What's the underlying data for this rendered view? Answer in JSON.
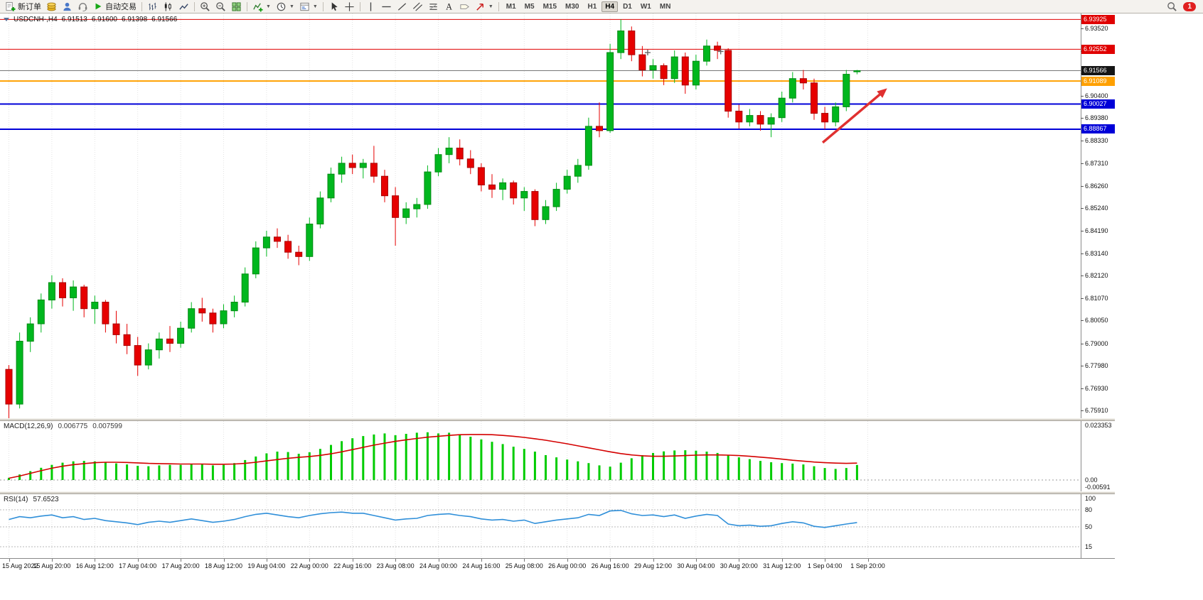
{
  "toolbar": {
    "new_order_label": "新订单",
    "autotrading_label": "自动交易",
    "timeframes": [
      "M1",
      "M5",
      "M15",
      "M30",
      "H1",
      "H4",
      "D1",
      "W1",
      "MN"
    ],
    "active_timeframe": "H4",
    "notification_count": "1"
  },
  "chart": {
    "symbol_period": "USDCNH-,H4",
    "open": "6.91513",
    "high": "6.91600",
    "low": "6.91398",
    "close": "6.91566"
  },
  "chart_data": {
    "type": "candlestick",
    "symbol": "USDCNH-",
    "timeframe": "H4",
    "price_axis": {
      "min": 6.7555,
      "max": 6.942
    },
    "price_ticks": [
      "6.93520",
      "6.92480",
      "6.91440",
      "6.90400",
      "6.89380",
      "6.88330",
      "6.87310",
      "6.86260",
      "6.85240",
      "6.84190",
      "6.83140",
      "6.82120",
      "6.81070",
      "6.80050",
      "6.79000",
      "6.77980",
      "6.76930",
      "6.75910"
    ],
    "x_labels": [
      {
        "i": 0,
        "label": "15 Aug 2022"
      },
      {
        "i": 4,
        "label": "15 Aug 20:00"
      },
      {
        "i": 8,
        "label": "16 Aug 12:00"
      },
      {
        "i": 12,
        "label": "17 Aug 04:00"
      },
      {
        "i": 16,
        "label": "17 Aug 20:00"
      },
      {
        "i": 20,
        "label": "18 Aug 12:00"
      },
      {
        "i": 24,
        "label": "19 Aug 04:00"
      },
      {
        "i": 28,
        "label": "22 Aug 00:00"
      },
      {
        "i": 32,
        "label": "22 Aug 16:00"
      },
      {
        "i": 36,
        "label": "23 Aug 08:00"
      },
      {
        "i": 40,
        "label": "24 Aug 00:00"
      },
      {
        "i": 44,
        "label": "24 Aug 16:00"
      },
      {
        "i": 48,
        "label": "25 Aug 08:00"
      },
      {
        "i": 52,
        "label": "26 Aug 00:00"
      },
      {
        "i": 56,
        "label": "26 Aug 16:00"
      },
      {
        "i": 60,
        "label": "29 Aug 12:00"
      },
      {
        "i": 64,
        "label": "30 Aug 04:00"
      },
      {
        "i": 68,
        "label": "30 Aug 20:00"
      },
      {
        "i": 72,
        "label": "31 Aug 12:00"
      },
      {
        "i": 76,
        "label": "1 Sep 04:00"
      },
      {
        "i": 80,
        "label": "1 Sep 20:00"
      }
    ],
    "candles_ohlc": [
      [
        6.778,
        6.78,
        6.7555,
        6.762
      ],
      [
        6.762,
        6.795,
        6.76,
        6.791
      ],
      [
        6.791,
        6.802,
        6.786,
        6.799
      ],
      [
        6.799,
        6.813,
        6.795,
        6.81
      ],
      [
        6.81,
        6.8214,
        6.806,
        6.818
      ],
      [
        6.818,
        6.82,
        6.807,
        6.811
      ],
      [
        6.811,
        6.819,
        6.805,
        6.816
      ],
      [
        6.816,
        6.817,
        6.802,
        6.806
      ],
      [
        6.806,
        6.812,
        6.799,
        6.809
      ],
      [
        6.809,
        6.81,
        6.795,
        6.799
      ],
      [
        6.799,
        6.805,
        6.79,
        6.794
      ],
      [
        6.794,
        6.799,
        6.785,
        6.789
      ],
      [
        6.789,
        6.793,
        6.775,
        6.78
      ],
      [
        6.78,
        6.79,
        6.778,
        6.787
      ],
      [
        6.787,
        6.795,
        6.783,
        6.792
      ],
      [
        6.792,
        6.798,
        6.786,
        6.79
      ],
      [
        6.79,
        6.8,
        6.788,
        6.797
      ],
      [
        6.797,
        6.809,
        6.795,
        6.806
      ],
      [
        6.806,
        6.811,
        6.8,
        6.804
      ],
      [
        6.804,
        6.806,
        6.795,
        6.799
      ],
      [
        6.799,
        6.808,
        6.797,
        6.805
      ],
      [
        6.805,
        6.812,
        6.802,
        6.809
      ],
      [
        6.809,
        6.825,
        6.807,
        6.822
      ],
      [
        6.822,
        6.837,
        6.82,
        6.834
      ],
      [
        6.834,
        6.8419,
        6.83,
        6.839
      ],
      [
        6.839,
        6.843,
        6.834,
        6.837
      ],
      [
        6.837,
        6.84,
        6.829,
        6.832
      ],
      [
        6.832,
        6.835,
        6.826,
        6.83
      ],
      [
        6.83,
        6.848,
        6.828,
        6.845
      ],
      [
        6.845,
        6.86,
        6.843,
        6.857
      ],
      [
        6.857,
        6.871,
        6.855,
        6.868
      ],
      [
        6.868,
        6.876,
        6.864,
        6.873
      ],
      [
        6.873,
        6.877,
        6.868,
        6.871
      ],
      [
        6.871,
        6.875,
        6.866,
        6.873
      ],
      [
        6.873,
        6.881,
        6.864,
        6.867
      ],
      [
        6.867,
        6.87,
        6.855,
        6.858
      ],
      [
        6.858,
        6.862,
        6.835,
        6.848
      ],
      [
        6.848,
        6.855,
        6.845,
        6.852
      ],
      [
        6.852,
        6.857,
        6.848,
        6.854
      ],
      [
        6.854,
        6.872,
        6.852,
        6.869
      ],
      [
        6.869,
        6.88,
        6.867,
        6.877
      ],
      [
        6.877,
        6.885,
        6.873,
        6.88
      ],
      [
        6.88,
        6.884,
        6.872,
        6.875
      ],
      [
        6.875,
        6.879,
        6.868,
        6.871
      ],
      [
        6.871,
        6.873,
        6.86,
        6.863
      ],
      [
        6.863,
        6.868,
        6.857,
        6.861
      ],
      [
        6.861,
        6.866,
        6.856,
        6.864
      ],
      [
        6.864,
        6.865,
        6.854,
        6.857
      ],
      [
        6.857,
        6.862,
        6.851,
        6.86
      ],
      [
        6.86,
        6.861,
        6.844,
        6.847
      ],
      [
        6.847,
        6.856,
        6.845,
        6.853
      ],
      [
        6.853,
        6.864,
        6.851,
        6.861
      ],
      [
        6.861,
        6.87,
        6.859,
        6.867
      ],
      [
        6.867,
        6.875,
        6.864,
        6.872
      ],
      [
        6.872,
        6.894,
        6.87,
        6.89
      ],
      [
        6.89,
        6.901,
        6.885,
        6.888
      ],
      [
        6.888,
        6.928,
        6.887,
        6.924
      ],
      [
        6.924,
        6.93925,
        6.921,
        6.934
      ],
      [
        6.934,
        6.936,
        6.92,
        6.923
      ],
      [
        6.923,
        6.927,
        6.913,
        6.916
      ],
      [
        6.916,
        6.921,
        6.912,
        6.918
      ],
      [
        6.918,
        6.919,
        6.909,
        6.912
      ],
      [
        6.912,
        6.925,
        6.91,
        6.922
      ],
      [
        6.922,
        6.924,
        6.905,
        6.909
      ],
      [
        6.909,
        6.923,
        6.907,
        6.92
      ],
      [
        6.92,
        6.93,
        6.918,
        6.927
      ],
      [
        6.927,
        6.929,
        6.921,
        6.925
      ],
      [
        6.925,
        6.926,
        6.894,
        6.897
      ],
      [
        6.897,
        6.9,
        6.889,
        6.892
      ],
      [
        6.892,
        6.898,
        6.89,
        6.895
      ],
      [
        6.895,
        6.897,
        6.888,
        6.891
      ],
      [
        6.891,
        6.896,
        6.885,
        6.894
      ],
      [
        6.894,
        6.906,
        6.892,
        6.903
      ],
      [
        6.903,
        6.915,
        6.901,
        6.912
      ],
      [
        6.912,
        6.916,
        6.907,
        6.91
      ],
      [
        6.91,
        6.912,
        6.893,
        6.896
      ],
      [
        6.896,
        6.899,
        6.88867,
        6.892
      ],
      [
        6.892,
        6.901,
        6.89,
        6.899
      ],
      [
        6.899,
        6.916,
        6.897,
        6.914
      ],
      [
        6.91513,
        6.916,
        6.91398,
        6.91566
      ]
    ],
    "hlines": [
      {
        "price": 6.93925,
        "label": "6.93925",
        "color": "#e00000",
        "badge_bg": "#e00000",
        "width": 1
      },
      {
        "price": 6.92552,
        "label": "6.92552",
        "color": "#e00000",
        "badge_bg": "#e00000",
        "width": 1
      },
      {
        "price": 6.91566,
        "label": "6.91566",
        "color": "#777777",
        "badge_bg": "#151515",
        "width": 1,
        "role": "bid"
      },
      {
        "price": 6.91089,
        "label": "6.91089",
        "color": "#ffa000",
        "badge_bg": "#ffa000",
        "width": 2
      },
      {
        "price": 6.90027,
        "label": "6.90027",
        "color": "#0000d8",
        "badge_bg": "#0000d8",
        "width": 2
      },
      {
        "price": 6.88867,
        "label": "6.88867",
        "color": "#0000d8",
        "badge_bg": "#0000d8",
        "width": 2
      }
    ],
    "markers": [
      {
        "i": 59.5,
        "price": 6.924
      },
      {
        "i": 66.3,
        "price": 6.9245
      }
    ],
    "arrow": {
      "i1": 75.8,
      "p1": 6.8825,
      "i2": 81.8,
      "p2": 6.9075,
      "color": "#e03030"
    },
    "macd": {
      "name": "MACD(12,26,9)",
      "value": "0.006775",
      "signal_value": "0.007599",
      "scale_max": "0.023353",
      "scale_zero": "0.00",
      "scale_min": "-0.00591",
      "histogram": [
        0.001,
        0.0025,
        0.004,
        0.0055,
        0.0068,
        0.0078,
        0.0084,
        0.0086,
        0.0084,
        0.008,
        0.0075,
        0.007,
        0.0064,
        0.0062,
        0.0066,
        0.0068,
        0.0068,
        0.0072,
        0.0072,
        0.0066,
        0.0068,
        0.0076,
        0.009,
        0.0106,
        0.012,
        0.0128,
        0.0126,
        0.0118,
        0.0125,
        0.014,
        0.0158,
        0.0175,
        0.0188,
        0.0198,
        0.0205,
        0.021,
        0.0202,
        0.0208,
        0.0213,
        0.0215,
        0.021,
        0.0213,
        0.0205,
        0.0195,
        0.0183,
        0.0172,
        0.0162,
        0.015,
        0.014,
        0.0128,
        0.0112,
        0.0102,
        0.0092,
        0.0084,
        0.0076,
        0.0066,
        0.006,
        0.0078,
        0.0098,
        0.0112,
        0.0122,
        0.0129,
        0.0133,
        0.0134,
        0.0132,
        0.0128,
        0.0122,
        0.0112,
        0.0102,
        0.0094,
        0.0086,
        0.008,
        0.0076,
        0.0074,
        0.007,
        0.0062,
        0.0054,
        0.005,
        0.0054,
        0.006775
      ],
      "signal": [
        0.0008,
        0.0018,
        0.003,
        0.0042,
        0.0053,
        0.0062,
        0.0069,
        0.0074,
        0.0078,
        0.008,
        0.008,
        0.0079,
        0.0077,
        0.0075,
        0.0074,
        0.0073,
        0.0072,
        0.0072,
        0.0072,
        0.0071,
        0.0071,
        0.0072,
        0.0075,
        0.008,
        0.0086,
        0.0092,
        0.0098,
        0.0102,
        0.0106,
        0.0111,
        0.0118,
        0.0127,
        0.0137,
        0.0147,
        0.0157,
        0.0166,
        0.0174,
        0.0181,
        0.0187,
        0.0193,
        0.0197,
        0.0201,
        0.0204,
        0.0205,
        0.0205,
        0.0204,
        0.0201,
        0.0197,
        0.0192,
        0.0186,
        0.0179,
        0.0171,
        0.0163,
        0.0154,
        0.0145,
        0.0136,
        0.0127,
        0.0119,
        0.0113,
        0.0109,
        0.0107,
        0.0107,
        0.0108,
        0.011,
        0.0112,
        0.0113,
        0.0113,
        0.0112,
        0.011,
        0.0107,
        0.0103,
        0.0099,
        0.0094,
        0.0089,
        0.0085,
        0.0081,
        0.0078,
        0.0076,
        0.0075,
        0.007599
      ]
    },
    "rsi": {
      "name": "RSI(14)",
      "value": "57.6523",
      "levels": [
        80,
        50,
        15
      ],
      "scale_labels": [
        "100",
        "80",
        "50",
        "15"
      ],
      "values": [
        63,
        68,
        66,
        69,
        71,
        66,
        68,
        63,
        65,
        61,
        59,
        57,
        54,
        58,
        60,
        58,
        61,
        64,
        61,
        58,
        60,
        63,
        68,
        72,
        74,
        71,
        68,
        66,
        70,
        73,
        75,
        76,
        74,
        74,
        70,
        66,
        62,
        64,
        65,
        70,
        72,
        73,
        70,
        68,
        64,
        62,
        63,
        60,
        62,
        56,
        59,
        62,
        64,
        66,
        72,
        70,
        78,
        79,
        73,
        70,
        71,
        68,
        71,
        65,
        69,
        72,
        70,
        55,
        52,
        53,
        51,
        52,
        56,
        59,
        57,
        51,
        49,
        52,
        55,
        57.6523
      ]
    },
    "colors": {
      "up": "#00b71e",
      "up_border": "#008a12",
      "down": "#e60000",
      "down_border": "#a80000",
      "macd_hist": "#00cc00",
      "macd_signal": "#d40000",
      "rsi_line": "#2f8fd9",
      "grid": "#e3e3e3"
    }
  }
}
